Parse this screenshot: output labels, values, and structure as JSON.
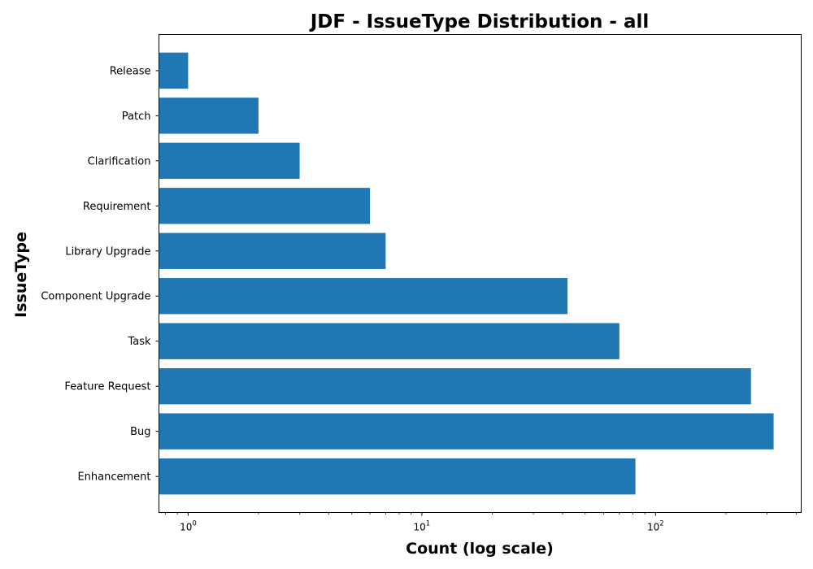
{
  "chart_data": {
    "type": "bar",
    "orientation": "horizontal",
    "title": "JDF - IssueType Distribution - all",
    "xlabel": "Count (log scale)",
    "ylabel": "IssueType",
    "x_scale": "log",
    "xlim": [
      0.75,
      420
    ],
    "x_ticks": [
      {
        "base": "10",
        "exp": "0",
        "value": 1
      },
      {
        "base": "10",
        "exp": "1",
        "value": 10
      },
      {
        "base": "10",
        "exp": "2",
        "value": 100
      }
    ],
    "categories": [
      "Enhancement",
      "Bug",
      "Feature Request",
      "Task",
      "Component Upgrade",
      "Library Upgrade",
      "Requirement",
      "Clarification",
      "Patch",
      "Release"
    ],
    "values": [
      82,
      320,
      256,
      70,
      42,
      7,
      6,
      3,
      2,
      1
    ],
    "bar_color": "#1f77b4",
    "grid": false
  }
}
